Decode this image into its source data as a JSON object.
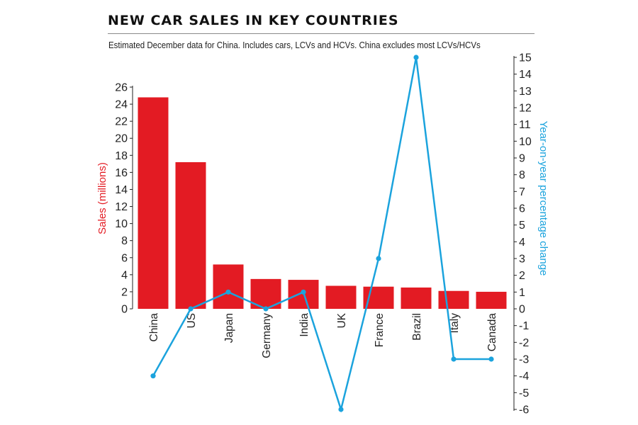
{
  "header": {
    "title": "NEW CAR SALES IN KEY COUNTRIES",
    "subtitle": "Estimated December data for China. Includes cars, LCVs and HCVs. China excludes most LCVs/HCVs"
  },
  "chart_data": {
    "type": "bar",
    "categories": [
      "China",
      "US",
      "Japan",
      "Germany",
      "India",
      "UK",
      "France",
      "Brazil",
      "Italy",
      "Canada"
    ],
    "series": [
      {
        "type": "bar",
        "axis": "left",
        "color": "#e31b23",
        "values": [
          24.8,
          17.2,
          5.2,
          3.5,
          3.4,
          2.7,
          2.6,
          2.5,
          2.1,
          2.0
        ]
      },
      {
        "type": "line",
        "axis": "right",
        "color": "#1ba3dd",
        "values": [
          -4,
          0,
          1,
          0,
          1,
          -6,
          3,
          15,
          -3,
          -3
        ]
      }
    ],
    "ylabel": "Sales (millions)",
    "ylim": [
      0,
      26
    ],
    "yticks": [
      0,
      2,
      4,
      6,
      8,
      10,
      12,
      14,
      16,
      18,
      20,
      22,
      24,
      26
    ],
    "y2label": "Year-on-year percentage change",
    "y2lim": [
      -6,
      15
    ],
    "y2ticks": [
      -6,
      -5,
      -4,
      -3,
      -2,
      -1,
      0,
      1,
      2,
      3,
      4,
      5,
      6,
      7,
      8,
      9,
      10,
      11,
      12,
      13,
      14,
      15
    ],
    "grid": false,
    "legend": "none"
  }
}
